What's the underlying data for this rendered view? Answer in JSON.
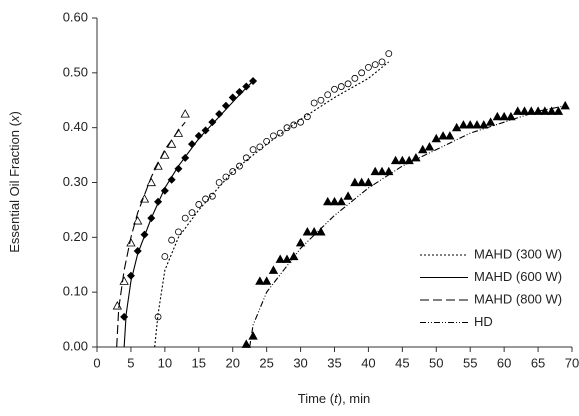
{
  "chart_data": {
    "type": "scatter",
    "xlabel": [
      "Time (",
      "t",
      "), min"
    ],
    "ylabel": [
      "Essential Oil Fraction (",
      "x",
      ")"
    ],
    "xlim": [
      0,
      70
    ],
    "xticks": [
      0,
      5,
      10,
      15,
      20,
      25,
      30,
      35,
      40,
      45,
      50,
      55,
      60,
      65,
      70
    ],
    "ylim": [
      0,
      0.6
    ],
    "yticks": [
      {
        "value": 0,
        "label": "0.00"
      },
      {
        "value": 0.1,
        "label": "0.10"
      },
      {
        "value": 0.2,
        "label": "0.20"
      },
      {
        "value": 0.3,
        "label": "0.30"
      },
      {
        "value": 0.4,
        "label": "0.40"
      },
      {
        "value": 0.5,
        "label": "0.50"
      },
      {
        "value": 0.6,
        "label": "0.60"
      }
    ],
    "grid": false,
    "legend": "lower right",
    "series": [
      {
        "kind": "scatter",
        "marker": "triangle-open",
        "color": "#000000",
        "x": [
          3,
          4,
          5,
          6,
          7,
          8,
          9,
          10,
          11,
          12,
          13
        ],
        "values": [
          0.075,
          0.12,
          0.19,
          0.23,
          0.27,
          0.3,
          0.33,
          0.35,
          0.37,
          0.39,
          0.425
        ]
      },
      {
        "kind": "scatter",
        "marker": "diamond",
        "color": "#000000",
        "x": [
          4,
          5,
          6,
          7,
          8,
          9,
          10,
          11,
          12,
          13,
          14,
          15,
          16,
          17,
          18,
          19,
          20,
          21,
          22,
          23
        ],
        "values": [
          0.055,
          0.13,
          0.175,
          0.205,
          0.235,
          0.265,
          0.285,
          0.305,
          0.325,
          0.345,
          0.37,
          0.385,
          0.395,
          0.41,
          0.425,
          0.44,
          0.455,
          0.465,
          0.475,
          0.485
        ]
      },
      {
        "kind": "scatter",
        "marker": "circle-open",
        "color": "#000000",
        "x": [
          9,
          10,
          11,
          12,
          13,
          14,
          15,
          16,
          17,
          18,
          19,
          20,
          21,
          22,
          23,
          24,
          25,
          26,
          27,
          28,
          29,
          30,
          31,
          32,
          33,
          34,
          35,
          36,
          37,
          38,
          39,
          40,
          41,
          42,
          43
        ],
        "values": [
          0.055,
          0.165,
          0.195,
          0.21,
          0.235,
          0.245,
          0.26,
          0.27,
          0.275,
          0.3,
          0.31,
          0.32,
          0.33,
          0.345,
          0.36,
          0.365,
          0.375,
          0.385,
          0.39,
          0.4,
          0.405,
          0.41,
          0.42,
          0.445,
          0.45,
          0.46,
          0.47,
          0.475,
          0.48,
          0.49,
          0.5,
          0.51,
          0.515,
          0.52,
          0.535
        ]
      },
      {
        "kind": "scatter",
        "marker": "triangle",
        "color": "#000000",
        "x": [
          22,
          23,
          24,
          25,
          26,
          27,
          28,
          29,
          30,
          31,
          32,
          33,
          34,
          35,
          36,
          37,
          38,
          39,
          40,
          41,
          42,
          43,
          44,
          45,
          46,
          47,
          48,
          49,
          50,
          51,
          52,
          53,
          54,
          55,
          56,
          57,
          58,
          59,
          60,
          61,
          62,
          63,
          64,
          65,
          66,
          67,
          68,
          69
        ],
        "values": [
          0.005,
          0.02,
          0.12,
          0.12,
          0.14,
          0.16,
          0.16,
          0.165,
          0.19,
          0.21,
          0.21,
          0.21,
          0.265,
          0.265,
          0.265,
          0.275,
          0.3,
          0.3,
          0.3,
          0.32,
          0.32,
          0.32,
          0.34,
          0.34,
          0.34,
          0.345,
          0.36,
          0.365,
          0.38,
          0.385,
          0.385,
          0.4,
          0.405,
          0.405,
          0.405,
          0.405,
          0.41,
          0.42,
          0.42,
          0.42,
          0.43,
          0.43,
          0.43,
          0.43,
          0.43,
          0.43,
          0.43,
          0.44
        ]
      },
      {
        "kind": "line",
        "name": "MAHD (300 W)",
        "dash": "2,2",
        "color": "#000000",
        "x": [
          8.5,
          9,
          10,
          12,
          15,
          20,
          25,
          30,
          35,
          40,
          43
        ],
        "values": [
          0,
          0.06,
          0.14,
          0.2,
          0.25,
          0.32,
          0.37,
          0.415,
          0.455,
          0.49,
          0.52
        ]
      },
      {
        "kind": "line",
        "name": "MAHD (600 W)",
        "dash": "none",
        "color": "#000000",
        "x": [
          4,
          4.3,
          5,
          6,
          8,
          10,
          12,
          15,
          18,
          21,
          23
        ],
        "values": [
          0,
          0.06,
          0.12,
          0.17,
          0.235,
          0.29,
          0.33,
          0.38,
          0.42,
          0.46,
          0.485
        ]
      },
      {
        "kind": "line",
        "name": "MAHD (800 W)",
        "dash": "9,4",
        "color": "#000000",
        "x": [
          2.9,
          3.2,
          4,
          5,
          6,
          8,
          10,
          12,
          13
        ],
        "values": [
          0,
          0.07,
          0.14,
          0.2,
          0.245,
          0.31,
          0.36,
          0.395,
          0.41
        ]
      },
      {
        "kind": "line",
        "name": "HD",
        "dash": "6,2,1,2,1,2",
        "color": "#000000",
        "x": [
          22.5,
          23,
          25,
          30,
          35,
          40,
          45,
          50,
          55,
          60,
          65,
          69
        ],
        "values": [
          0,
          0.04,
          0.1,
          0.18,
          0.24,
          0.29,
          0.33,
          0.36,
          0.39,
          0.41,
          0.43,
          0.44
        ]
      }
    ]
  }
}
